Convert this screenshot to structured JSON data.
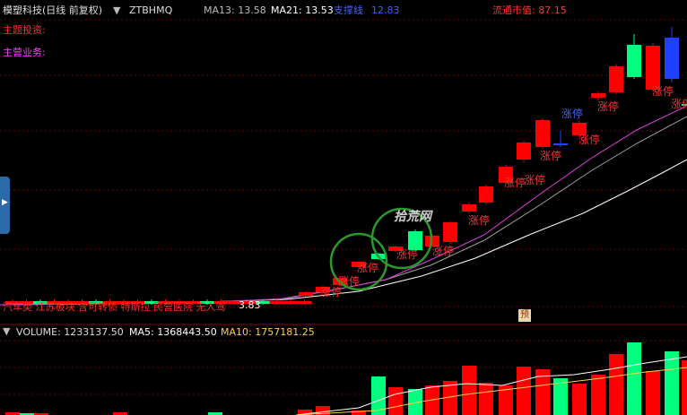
{
  "header": {
    "title": "模塑科技(日线 前复权)",
    "code": "ZTBHMQ",
    "ma13": "MA13: 13.58",
    "ma21": "MA21: 13.53",
    "support_label": "支撑线",
    "support_value": "12.83",
    "float_mv": "流通市值: 87.15"
  },
  "labels": {
    "theme": "主题投资:",
    "business": "主营业务:",
    "concepts": "汽车类 江苏板块 含可转债 特斯拉 民营医院 无人驾",
    "concepts_tail": "3.83",
    "watermark": "拾荒网",
    "yu": "预",
    "limit_up": "涨停"
  },
  "volume_header": {
    "title": "VOLUME: 1233137.50",
    "ma5": "MA5: 1368443.50",
    "ma10": "MA10: 1757181.25"
  },
  "colors": {
    "up": "#ff0000",
    "down": "#00ff7f",
    "ma_magenta": "#e040e0",
    "ma_gray": "#a0a0a0",
    "ma_white": "#ffffff",
    "circle": "#2a9a2a",
    "label_red": "#ff3030",
    "label_magenta": "#ff40ff",
    "label_yellow": "#ffd24a",
    "label_blue": "#4060ff"
  },
  "chart_data": {
    "type": "candlestick",
    "indicators": [
      "MA13",
      "MA21",
      "支撑线"
    ],
    "series": [
      {
        "name": "price",
        "points": "approx. 40 daily candles, flat then rising"
      },
      {
        "name": "VOLUME"
      },
      {
        "name": "MA5"
      },
      {
        "name": "MA10"
      }
    ]
  }
}
